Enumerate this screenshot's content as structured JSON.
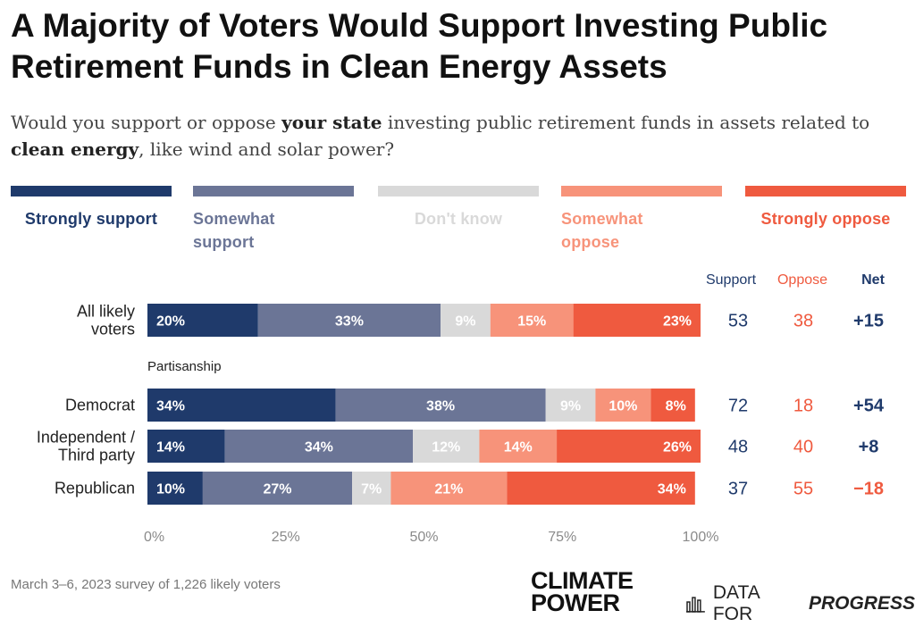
{
  "header": {
    "title": "A Majority of Voters Would Support Investing Public Retirement Funds in Clean Energy Assets",
    "subtitle_parts": [
      {
        "text": "Would you support or oppose ",
        "bold": false
      },
      {
        "text": "your state",
        "bold": true
      },
      {
        "text": " investing public retirement funds in assets related to ",
        "bold": false
      },
      {
        "text": "clean energy",
        "bold": true
      },
      {
        "text": ", like wind and solar power?",
        "bold": false
      }
    ]
  },
  "legend": [
    {
      "label": "Strongly support",
      "color": "#1f3a6b"
    },
    {
      "label": "Somewhat support",
      "color": "#6b7596"
    },
    {
      "label": "Don't know",
      "color": "#d9d9d9"
    },
    {
      "label": "Somewhat oppose",
      "color": "#f7937a"
    },
    {
      "label": "Strongly oppose",
      "color": "#ef5a3f"
    }
  ],
  "summary_headers": {
    "support": "Support",
    "oppose": "Oppose",
    "net": "Net"
  },
  "group_label": "Partisanship",
  "chart_data": {
    "type": "bar",
    "orientation": "horizontal",
    "stacked": true,
    "xlim": [
      0,
      100
    ],
    "x_ticks": [
      "0%",
      "25%",
      "50%",
      "75%",
      "100%"
    ],
    "categories": [
      "All likely voters",
      "Democrat",
      "Independent / Third party",
      "Republican"
    ],
    "series": [
      {
        "name": "Strongly support",
        "values": [
          20,
          34,
          14,
          10
        ]
      },
      {
        "name": "Somewhat support",
        "values": [
          33,
          38,
          34,
          27
        ]
      },
      {
        "name": "Don't know",
        "values": [
          9,
          9,
          12,
          7
        ]
      },
      {
        "name": "Somewhat oppose",
        "values": [
          15,
          10,
          14,
          21
        ]
      },
      {
        "name": "Strongly oppose",
        "values": [
          23,
          8,
          26,
          34
        ]
      }
    ],
    "data_labels": [
      [
        "20%",
        "33%",
        "9%",
        "15%",
        "23%"
      ],
      [
        "34%",
        "38%",
        "9%",
        "10%",
        "8%"
      ],
      [
        "14%",
        "34%",
        "12%",
        "14%",
        "26%"
      ],
      [
        "10%",
        "27%",
        "7%",
        "21%",
        "34%"
      ]
    ],
    "support": [
      "53",
      "72",
      "48",
      "37"
    ],
    "oppose": [
      "38",
      "18",
      "40",
      "55"
    ],
    "net": [
      "+15",
      "+54",
      "+8",
      "−18"
    ]
  },
  "colors": {
    "net_positive": "#1f3a6b",
    "net_negative": "#ef5a3f",
    "support_text": "#1f3a6b",
    "oppose_text": "#ef5a3f",
    "label_light": "#ffffff",
    "axis_text": "#8a8a8a"
  },
  "footer": {
    "source": "March 3–6, 2023 survey of 1,226 likely voters",
    "logo_climate_power_line1": "CLIMATE",
    "logo_climate_power_line2": "POWER",
    "logo_dfp_regular": "DATA FOR",
    "logo_dfp_bold": "PROGRESS"
  }
}
